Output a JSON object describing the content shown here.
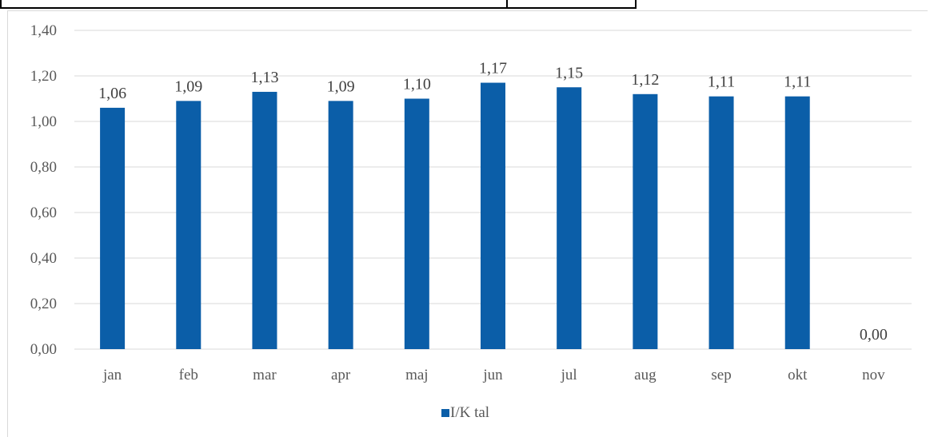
{
  "chart_data": {
    "type": "bar",
    "categories": [
      "jan",
      "feb",
      "mar",
      "apr",
      "maj",
      "jun",
      "jul",
      "aug",
      "sep",
      "okt",
      "nov"
    ],
    "series": [
      {
        "name": "I/K tal",
        "values": [
          1.06,
          1.09,
          1.13,
          1.09,
          1.1,
          1.17,
          1.15,
          1.12,
          1.11,
          1.11,
          0.0
        ]
      }
    ],
    "data_labels": [
      "1,06",
      "1,09",
      "1,13",
      "1,09",
      "1,10",
      "1,17",
      "1,15",
      "1,12",
      "1,11",
      "1,11",
      "0,00"
    ],
    "ylim": [
      0,
      1.4
    ],
    "yticks": [
      "0,00",
      "0,20",
      "0,40",
      "0,60",
      "0,80",
      "1,00",
      "1,20",
      "1,40"
    ],
    "grid": true,
    "legend_position": "bottom",
    "bar_color": "#0b5ea8",
    "grid_color": "#d9d9d9"
  }
}
